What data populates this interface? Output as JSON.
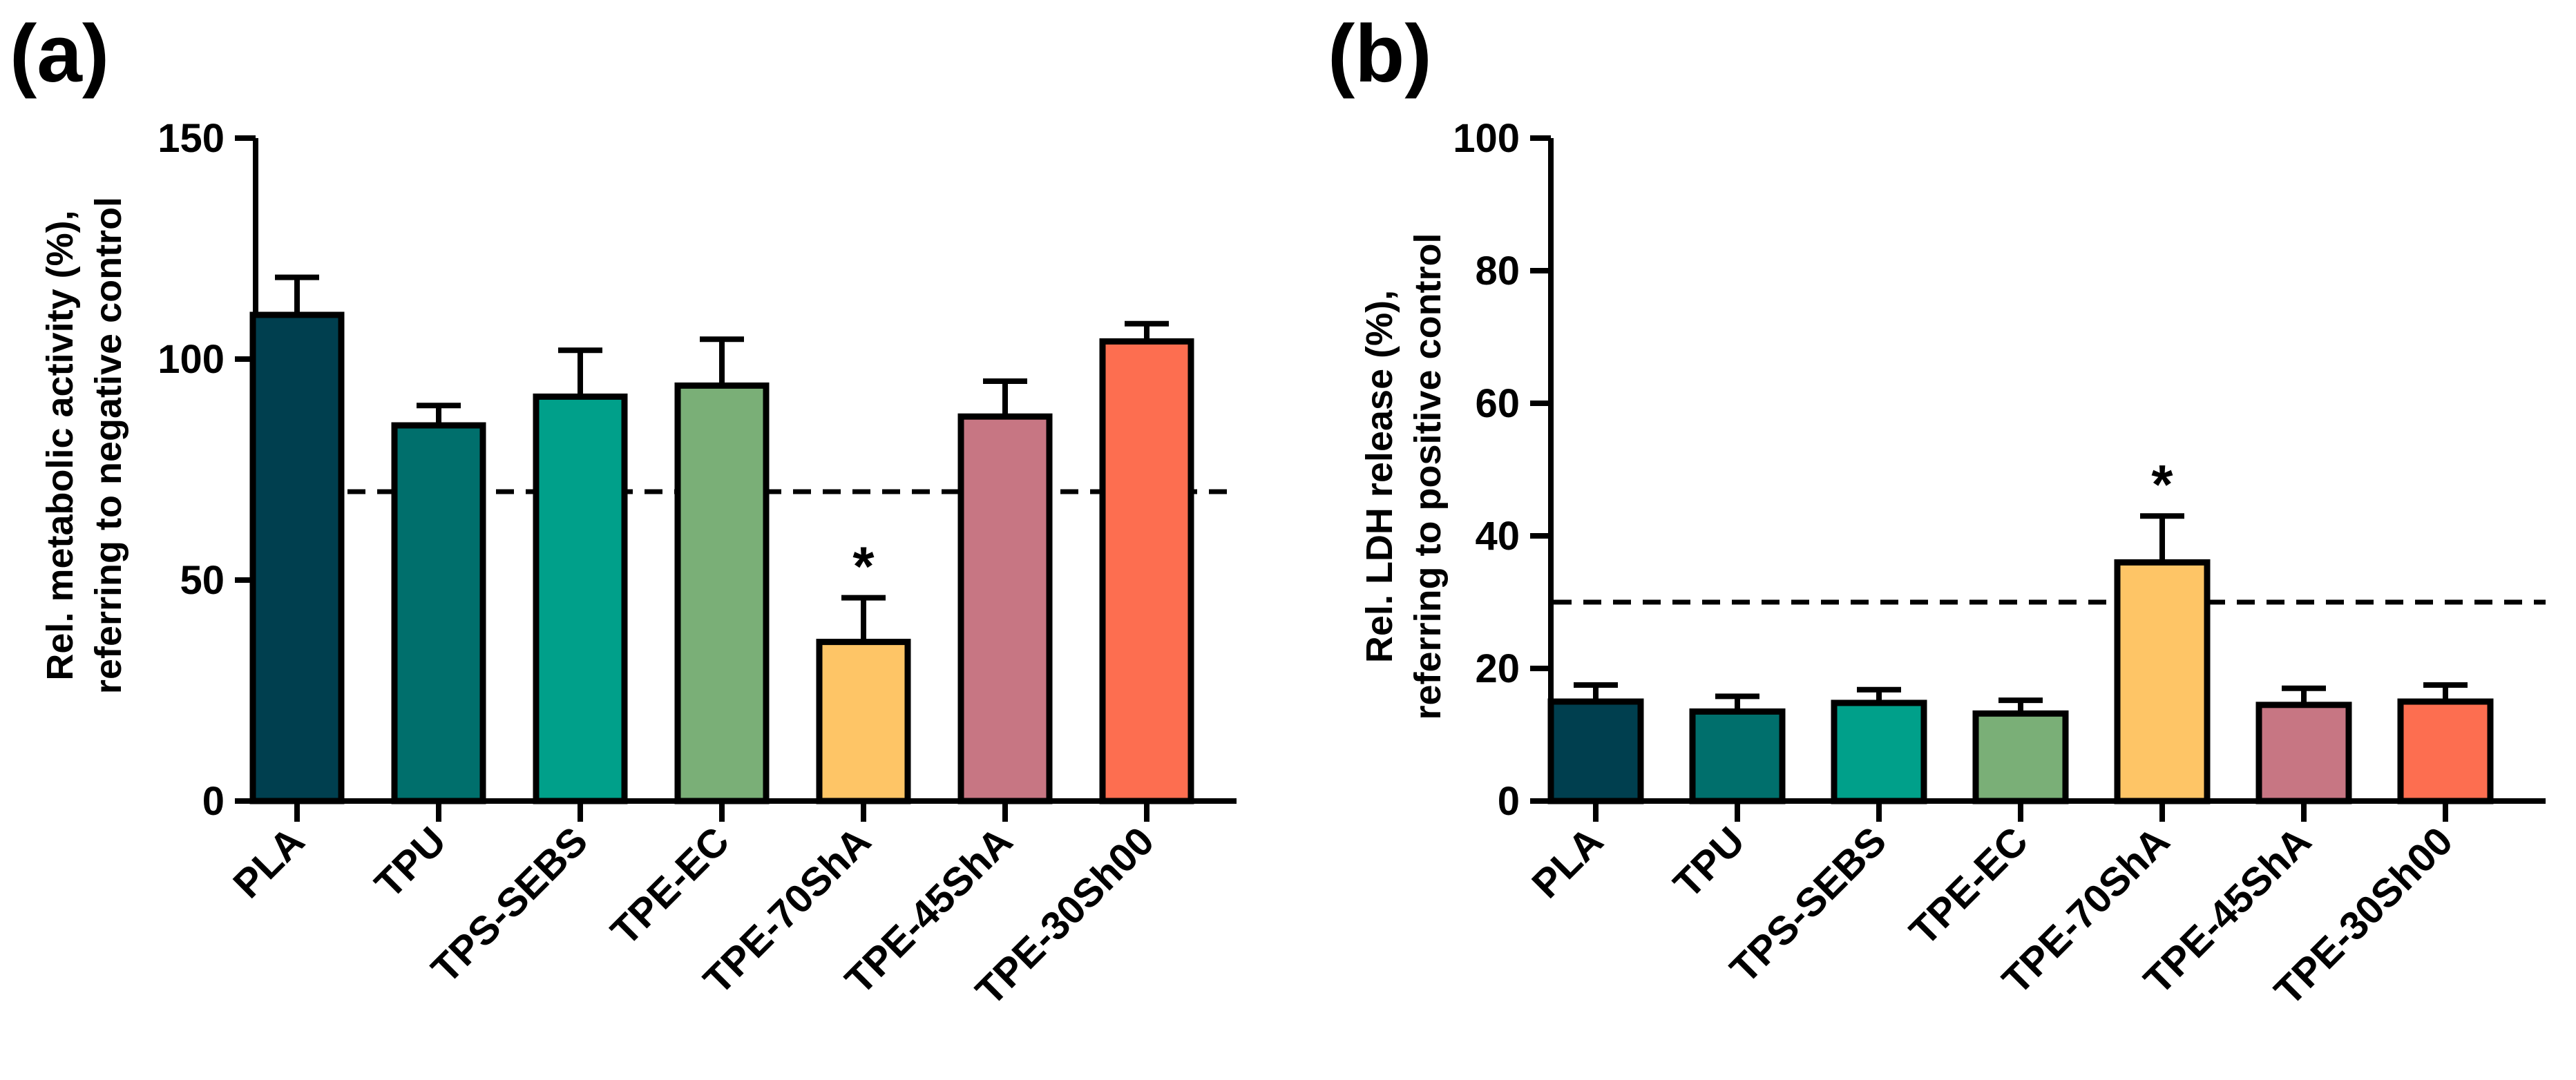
{
  "colors": {
    "bar_edge": "#000000",
    "threshold_line": "#000000",
    "series_colors": [
      "#003f4f",
      "#006f6c",
      "#00a08a",
      "#7aaf77",
      "#fec566",
      "#c77683",
      "#fd6e50"
    ]
  },
  "chart_data": [
    {
      "type": "bar",
      "panel": "(a)",
      "categories": [
        "PLA",
        "TPU",
        "TPS-SEBS",
        "TPE-EC",
        "TPE-70ShA",
        "TPE-45ShA",
        "TPE-30Sh00"
      ],
      "values": [
        110,
        85,
        91.5,
        94,
        36,
        87,
        104
      ],
      "error_upper": [
        8.5,
        4.5,
        10.5,
        10.5,
        10,
        8,
        4
      ],
      "significance": [
        "",
        "",
        "",
        "",
        "*",
        "",
        ""
      ],
      "ylabel_lines": [
        "Rel. metabolic activity (%),",
        "referring to negative control"
      ],
      "ylim": [
        0,
        150
      ],
      "yticks": [
        0,
        50,
        100,
        150
      ],
      "threshold": 70,
      "grid": false,
      "legend": "none"
    },
    {
      "type": "bar",
      "panel": "(b)",
      "categories": [
        "PLA",
        "TPU",
        "TPS-SEBS",
        "TPE-EC",
        "TPE-70ShA",
        "TPE-45ShA",
        "TPE-30Sh00"
      ],
      "values": [
        15,
        13.5,
        14.8,
        13.2,
        36,
        14.5,
        15
      ],
      "error_upper": [
        2.5,
        2.3,
        2,
        2,
        7,
        2.5,
        2.5
      ],
      "significance": [
        "",
        "",
        "",
        "",
        "*",
        "",
        ""
      ],
      "ylabel_lines": [
        "Rel. LDH release (%),",
        "referring to positive control"
      ],
      "ylim": [
        0,
        100
      ],
      "yticks": [
        0,
        20,
        40,
        60,
        80,
        100
      ],
      "threshold": 30,
      "grid": false,
      "legend": "none"
    }
  ]
}
